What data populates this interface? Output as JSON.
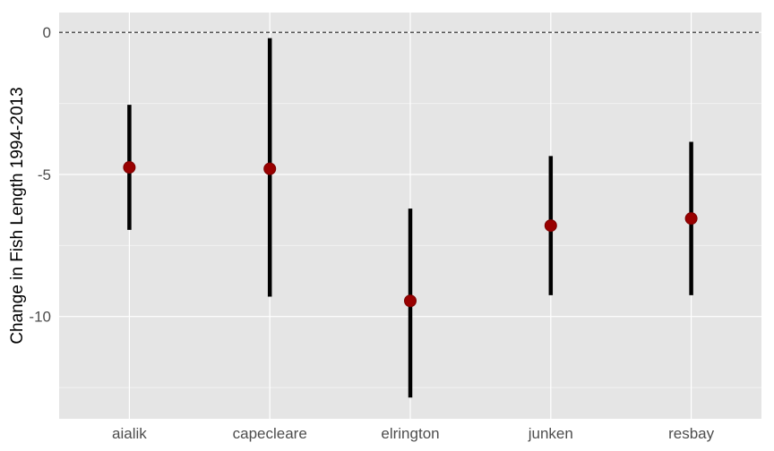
{
  "chart_data": {
    "type": "errorbar",
    "title": "",
    "xlabel": "",
    "ylabel": "Change in Fish Length 1994-2013",
    "categories": [
      "aialik",
      "capecleare",
      "elrington",
      "junken",
      "resbay"
    ],
    "series": [
      {
        "values": [
          -4.75,
          -4.8,
          -9.45,
          -6.8,
          -6.55
        ],
        "lower": [
          -6.95,
          -9.3,
          -12.85,
          -9.25,
          -9.25
        ],
        "upper": [
          -2.55,
          -0.2,
          -6.2,
          -4.35,
          -3.85
        ]
      }
    ],
    "yticks": [
      0,
      -5,
      -10
    ],
    "ytick_labels": [
      "0",
      "-5",
      "-10"
    ],
    "ylim": [
      -13.6,
      0.7
    ],
    "reference_line": {
      "y": 0,
      "style": "dashed"
    },
    "grid": true,
    "legend": "none",
    "colors": {
      "panel": "#e5e5e5",
      "grid_major": "#ffffff",
      "grid_minor": "#f2f2f2",
      "point": "#990000",
      "errorbar": "#000000",
      "reference_line": "#555555"
    }
  }
}
